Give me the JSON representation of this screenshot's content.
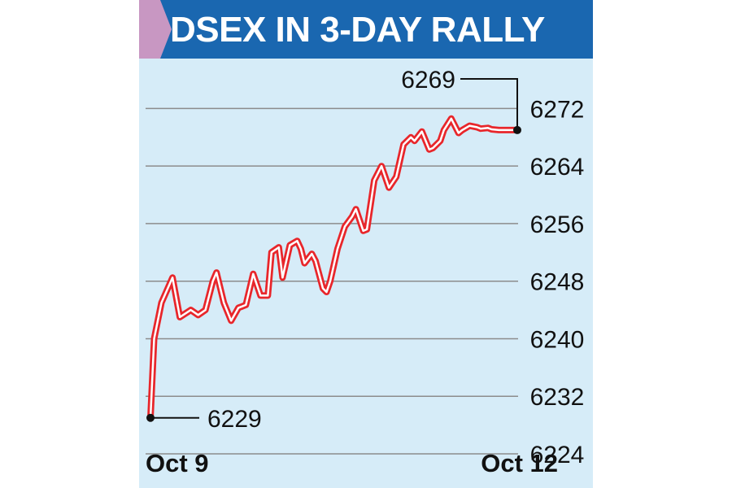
{
  "header": {
    "title": "DSEX IN 3-DAY RALLY"
  },
  "colors": {
    "header_bg": "#1a67b0",
    "tab_marker": "#c897c2",
    "chart_bg": "#d6ecf8",
    "line": "#e8262b",
    "gridline": "#8c8c8c"
  },
  "chart_data": {
    "type": "line",
    "title": "DSEX IN 3-DAY RALLY",
    "xlabel": "",
    "ylabel": "",
    "x_labels": [
      "Oct 9",
      "Oct 12"
    ],
    "y_ticks": [
      6272,
      6264,
      6256,
      6248,
      6240,
      6232,
      6224
    ],
    "ylim": [
      6224,
      6276
    ],
    "grid": true,
    "axis_side": "right",
    "annotations": [
      {
        "label": "6229",
        "value": 6229,
        "at": "start"
      },
      {
        "label": "6269",
        "value": 6269,
        "at": "end"
      }
    ],
    "series": [
      {
        "x": [
          0,
          1,
          3,
          6,
          8,
          11,
          13,
          15,
          17,
          18,
          20,
          22,
          24,
          25,
          26,
          28,
          30,
          32,
          33,
          35,
          36,
          38,
          40,
          41,
          42,
          44,
          45,
          47,
          48,
          49,
          51,
          53,
          55,
          56,
          58,
          59,
          61,
          63,
          65,
          67,
          69,
          71,
          72,
          74,
          76,
          77,
          79,
          80,
          82,
          84,
          85,
          87,
          89,
          90,
          92,
          93,
          95,
          97,
          98,
          100
        ],
        "values": [
          6229,
          6240,
          6245,
          6248.5,
          6243,
          6244,
          6243.3,
          6244,
          6248,
          6249.2,
          6245,
          6242.5,
          6244.3,
          6244.5,
          6244.7,
          6249,
          6246,
          6246,
          6252,
          6252.7,
          6248.5,
          6253,
          6253.6,
          6252.5,
          6250.5,
          6251.8,
          6250.8,
          6247,
          6246.5,
          6248,
          6252.5,
          6255.6,
          6257,
          6258,
          6255,
          6255.2,
          6262,
          6264,
          6261,
          6262.5,
          6267,
          6268,
          6267.5,
          6268.8,
          6266.3,
          6266.5,
          6267.5,
          6269,
          6270.6,
          6268.6,
          6269,
          6269.6,
          6269.4,
          6269.2,
          6269.3,
          6269.1,
          6269,
          6269,
          6269,
          6269
        ]
      }
    ]
  }
}
